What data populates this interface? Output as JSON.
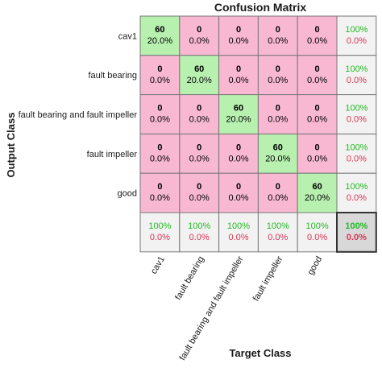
{
  "chart_data": {
    "type": "heatmap",
    "title": "Confusion Matrix",
    "xlabel": "Target Class",
    "ylabel": "Output Class",
    "row_labels": [
      "cav1",
      "fault bearing",
      "fault bearing and fault impeller",
      "fault impeller",
      "good"
    ],
    "col_labels": [
      "cav1",
      "fault bearing",
      "fault bearing and fault impeller",
      "fault impeller",
      "good"
    ],
    "cells": [
      [
        {
          "count": "60",
          "pct": "20.0%"
        },
        {
          "count": "0",
          "pct": "0.0%"
        },
        {
          "count": "0",
          "pct": "0.0%"
        },
        {
          "count": "0",
          "pct": "0.0%"
        },
        {
          "count": "0",
          "pct": "0.0%"
        }
      ],
      [
        {
          "count": "0",
          "pct": "0.0%"
        },
        {
          "count": "60",
          "pct": "20.0%"
        },
        {
          "count": "0",
          "pct": "0.0%"
        },
        {
          "count": "0",
          "pct": "0.0%"
        },
        {
          "count": "0",
          "pct": "0.0%"
        }
      ],
      [
        {
          "count": "0",
          "pct": "0.0%"
        },
        {
          "count": "0",
          "pct": "0.0%"
        },
        {
          "count": "60",
          "pct": "20.0%"
        },
        {
          "count": "0",
          "pct": "0.0%"
        },
        {
          "count": "0",
          "pct": "0.0%"
        }
      ],
      [
        {
          "count": "0",
          "pct": "0.0%"
        },
        {
          "count": "0",
          "pct": "0.0%"
        },
        {
          "count": "0",
          "pct": "0.0%"
        },
        {
          "count": "60",
          "pct": "20.0%"
        },
        {
          "count": "0",
          "pct": "0.0%"
        }
      ],
      [
        {
          "count": "0",
          "pct": "0.0%"
        },
        {
          "count": "0",
          "pct": "0.0%"
        },
        {
          "count": "0",
          "pct": "0.0%"
        },
        {
          "count": "0",
          "pct": "0.0%"
        },
        {
          "count": "60",
          "pct": "20.0%"
        }
      ]
    ],
    "row_summary": [
      {
        "correct": "100%",
        "error": "0.0%"
      },
      {
        "correct": "100%",
        "error": "0.0%"
      },
      {
        "correct": "100%",
        "error": "0.0%"
      },
      {
        "correct": "100%",
        "error": "0.0%"
      },
      {
        "correct": "100%",
        "error": "0.0%"
      }
    ],
    "col_summary": [
      {
        "correct": "100%",
        "error": "0.0%"
      },
      {
        "correct": "100%",
        "error": "0.0%"
      },
      {
        "correct": "100%",
        "error": "0.0%"
      },
      {
        "correct": "100%",
        "error": "0.0%"
      },
      {
        "correct": "100%",
        "error": "0.0%"
      }
    ],
    "overall": {
      "correct": "100%",
      "error": "0.0%"
    },
    "colors": {
      "diagonal": "#b8f0b0",
      "off_diagonal": "#f8b8d2",
      "summary": "#f2f2f2",
      "overall": "#d8d8d8",
      "correct_text": "#22bb22",
      "error_text": "#dd3355",
      "grid": "#777777"
    }
  }
}
